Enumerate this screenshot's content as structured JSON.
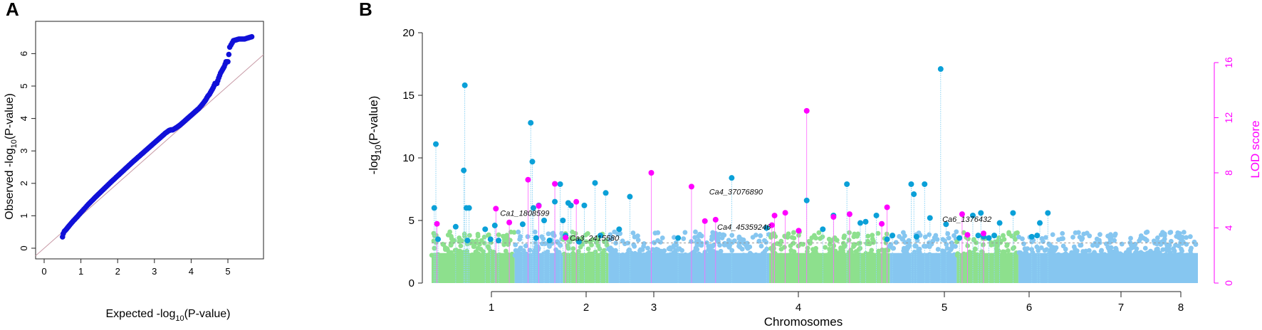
{
  "chart_data": [
    {
      "panel_label": "A",
      "type": "scatter",
      "xlabel_main": "Expected -log",
      "xlabel_sub": "10",
      "xlabel_tail": "(P-value)",
      "ylabel_main": "Observed -log",
      "ylabel_sub": "10",
      "ylabel_tail": "(P-value)",
      "xlim": [
        0,
        6
      ],
      "ylim": [
        0,
        7
      ],
      "x_ticks": [
        "0",
        "1",
        "2",
        "3",
        "4",
        "5"
      ],
      "y_ticks": [
        "0",
        "1",
        "2",
        "3",
        "4",
        "5",
        "6"
      ],
      "reference_line": "y = x",
      "colors": {
        "points": "#1010d8",
        "reference": "#c89aa6"
      },
      "points": {
        "x": [
          0.5,
          0.52,
          0.55,
          0.6,
          0.65,
          0.7,
          0.8,
          0.9,
          1.0,
          1.2,
          1.4,
          1.6,
          1.8,
          2.0,
          2.2,
          2.4,
          2.6,
          2.8,
          3.0,
          3.2,
          3.3,
          3.4,
          3.45,
          3.5,
          3.6,
          3.7,
          3.8,
          3.9,
          4.0,
          4.1,
          4.2,
          4.28,
          4.35,
          4.4,
          4.45,
          4.5,
          4.55,
          4.6,
          4.65,
          4.7,
          4.75,
          4.8,
          4.85,
          4.9,
          4.95,
          5.0,
          5.05,
          5.15,
          5.3,
          5.45,
          5.65
        ],
        "y": [
          0.35,
          0.45,
          0.52,
          0.58,
          0.65,
          0.72,
          0.85,
          0.97,
          1.1,
          1.35,
          1.58,
          1.8,
          2.02,
          2.23,
          2.44,
          2.65,
          2.85,
          3.05,
          3.25,
          3.45,
          3.55,
          3.63,
          3.65,
          3.65,
          3.72,
          3.8,
          3.9,
          4.0,
          4.1,
          4.2,
          4.3,
          4.4,
          4.5,
          4.58,
          4.68,
          4.75,
          4.85,
          4.95,
          5.08,
          5.08,
          5.25,
          5.4,
          5.5,
          5.6,
          5.75,
          5.75,
          6.2,
          6.4,
          6.45,
          6.45,
          6.52
        ]
      }
    },
    {
      "panel_label": "B",
      "type": "scatter",
      "xlabel": "Chromosomes",
      "ylabel_main": "-log",
      "ylabel_sub": "10",
      "ylabel_tail": "(P-value)",
      "y2label": "LOD score",
      "ylim": [
        0,
        20
      ],
      "y2lim": [
        0,
        16
      ],
      "y_ticks": [
        "0",
        "5",
        "10",
        "15",
        "20"
      ],
      "y2_ticks": [
        "0",
        "4",
        "8",
        "12",
        "16"
      ],
      "chromosomes": [
        "1",
        "2",
        "3",
        "4",
        "5",
        "6",
        "7",
        "8"
      ],
      "threshold": 3.2,
      "colors": {
        "green": "#8de08d",
        "blue": "#86c6f0",
        "dark_blue": "#0aa0d8",
        "magenta": "#ff00ff",
        "threshold": "#999999"
      },
      "background_segments": [
        {
          "x0": 0.0,
          "x1": 1.55,
          "color": "green"
        },
        {
          "x0": 1.55,
          "x1": 2.45,
          "color": "blue"
        },
        {
          "x0": 2.45,
          "x1": 3.3,
          "color": "green"
        },
        {
          "x0": 3.3,
          "x1": 6.3,
          "color": "blue"
        },
        {
          "x0": 6.3,
          "x1": 8.55,
          "color": "green"
        },
        {
          "x0": 8.55,
          "x1": 9.8,
          "color": "blue"
        },
        {
          "x0": 9.8,
          "x1": 10.95,
          "color": "green"
        },
        {
          "x0": 10.95,
          "x1": 14.3,
          "color": "blue"
        }
      ],
      "gwas_snps": {
        "x": [
          0.05,
          0.08,
          0.12,
          0.45,
          0.6,
          0.62,
          0.65,
          0.67,
          0.7,
          1.0,
          1.1,
          1.18,
          1.25,
          1.7,
          1.85,
          1.88,
          1.9,
          1.95,
          2.0,
          2.1,
          2.2,
          2.3,
          2.4,
          2.45,
          2.5,
          2.55,
          2.6,
          2.75,
          2.85,
          3.05,
          3.15,
          3.25,
          3.5,
          3.7,
          4.6,
          5.6,
          6.25,
          7.0,
          7.3,
          7.5,
          7.75,
          8.0,
          8.1,
          8.3,
          8.5,
          8.6,
          8.95,
          9.0,
          9.05,
          9.2,
          9.3,
          9.5,
          9.6,
          9.85,
          10.1,
          10.2,
          10.25,
          10.3,
          10.4,
          10.5,
          10.6,
          10.85,
          11.2,
          11.3,
          11.35,
          11.5
        ],
        "y": [
          6.0,
          11.1,
          3.5,
          4.5,
          9.0,
          15.8,
          6.0,
          3.4,
          6.0,
          4.3,
          3.5,
          4.6,
          3.4,
          4.7,
          12.8,
          9.7,
          6.0,
          3.6,
          6.2,
          5.0,
          3.4,
          6.5,
          7.9,
          5.0,
          3.8,
          6.4,
          6.2,
          3.3,
          6.2,
          8.0,
          3.8,
          7.2,
          4.3,
          6.9,
          3.6,
          8.4,
          4.4,
          6.6,
          4.3,
          5.4,
          7.9,
          4.8,
          4.9,
          5.4,
          3.5,
          3.8,
          7.9,
          7.1,
          3.7,
          7.9,
          5.2,
          17.1,
          4.7,
          3.6,
          5.4,
          3.8,
          5.6,
          3.7,
          3.6,
          3.8,
          4.8,
          5.6,
          3.7,
          3.8,
          4.8,
          5.6
        ]
      },
      "qtl_peaks": {
        "x": [
          0.1,
          1.2,
          1.45,
          1.8,
          2.0,
          2.3,
          2.5,
          2.7,
          4.1,
          4.85,
          5.1,
          5.3,
          6.35,
          6.4,
          6.6,
          6.85,
          7.0,
          7.5,
          7.8,
          8.4,
          8.5,
          9.9,
          10.0,
          10.3
        ],
        "lod": [
          4.3,
          5.4,
          4.4,
          7.5,
          5.6,
          7.2,
          3.3,
          5.9,
          8.0,
          7.0,
          4.5,
          4.6,
          4.2,
          4.9,
          5.1,
          3.8,
          12.5,
          4.8,
          5.0,
          4.3,
          5.5,
          5.0,
          3.5,
          3.6
        ]
      },
      "annotations": [
        {
          "text": "Ca1_1808599",
          "x": 1.2,
          "y": 5.6
        },
        {
          "text": "Ca3_2415580",
          "x": 2.5,
          "y": 3.6
        },
        {
          "text": "Ca4_37076890",
          "x": 5.1,
          "y": 7.3
        },
        {
          "text": "Ca4_45359246",
          "x": 5.25,
          "y": 4.5
        },
        {
          "text": "Ca6_1376432",
          "x": 9.45,
          "y": 5.1
        }
      ],
      "chromosome_ticks": [
        {
          "label": "1",
          "x": 0.5
        },
        {
          "label": "2",
          "x": 1.85
        },
        {
          "label": "3",
          "x": 2.55
        },
        {
          "label": "4",
          "x": 4.05
        },
        {
          "label": "5",
          "x": 5.55
        },
        {
          "label": "6",
          "x": 6.4
        },
        {
          "label": "7",
          "x": 7.4
        },
        {
          "label": "8",
          "x": 8.0
        }
      ]
    }
  ]
}
